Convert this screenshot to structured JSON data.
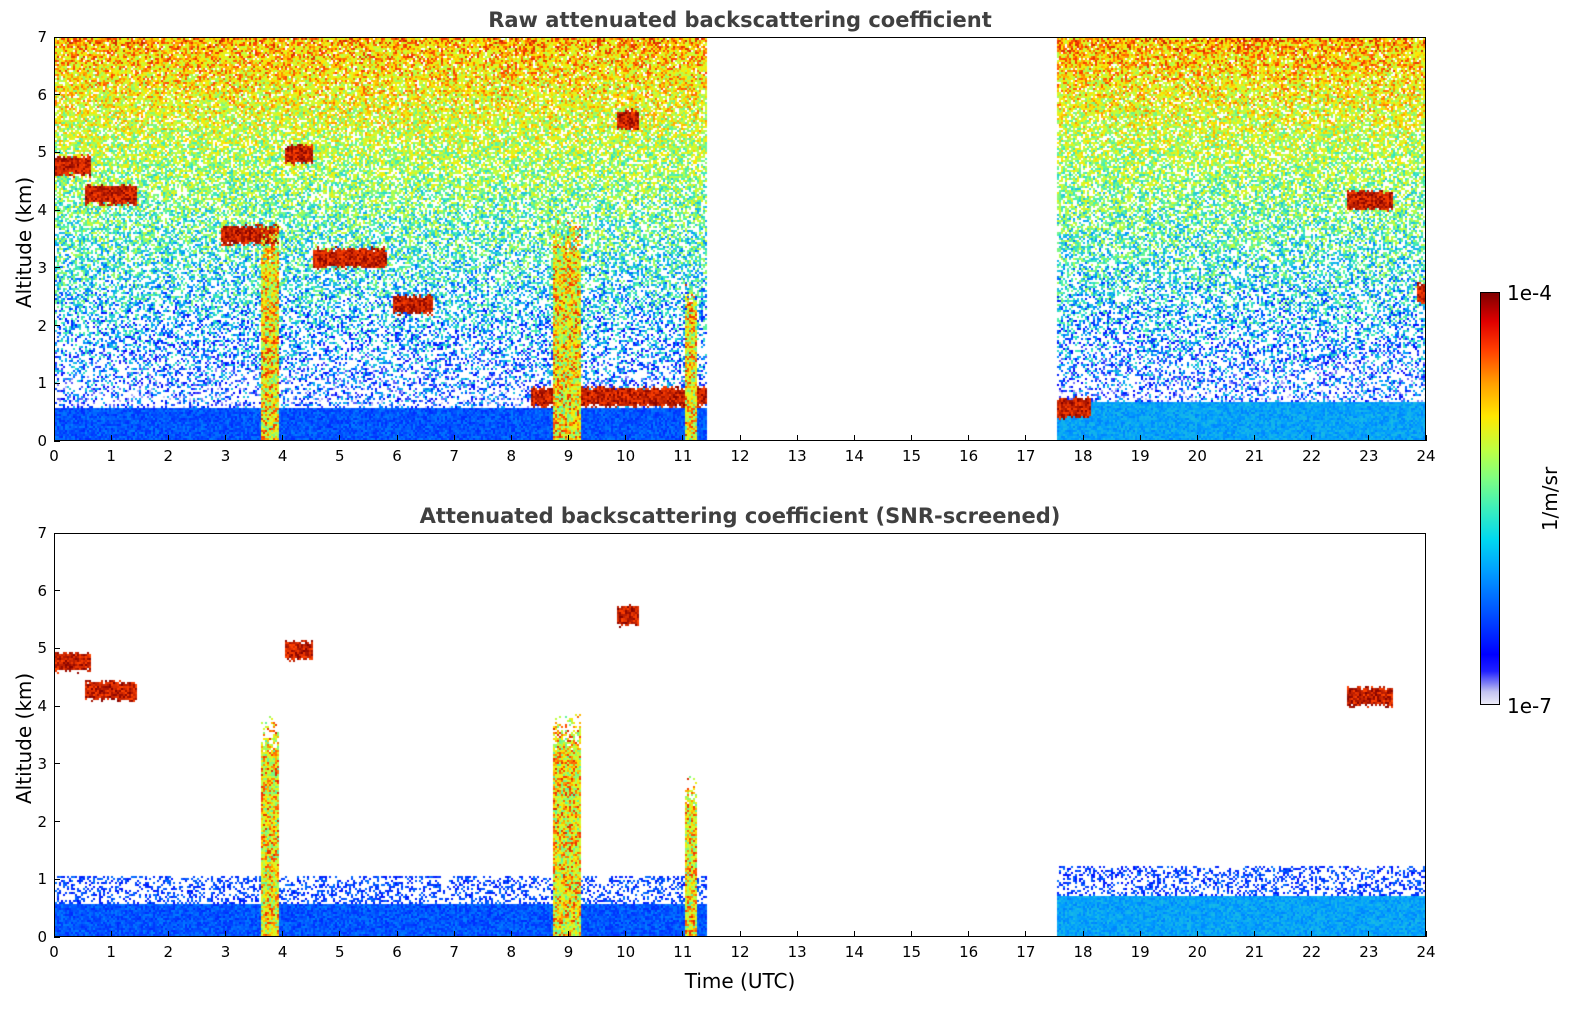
{
  "chart_data": [
    {
      "type": "heatmap",
      "title": "Raw attenuated backscattering coefficient",
      "xlabel": "",
      "ylabel": "Altitude (km)",
      "xlim": [
        0,
        24
      ],
      "ylim": [
        0,
        7
      ],
      "x_ticks": [
        "0",
        "1",
        "2",
        "3",
        "4",
        "5",
        "6",
        "7",
        "8",
        "9",
        "10",
        "11",
        "12",
        "13",
        "14",
        "15",
        "16",
        "17",
        "18",
        "19",
        "20",
        "21",
        "22",
        "23",
        "24"
      ],
      "y_ticks": [
        "0",
        "1",
        "2",
        "3",
        "4",
        "5",
        "6",
        "7"
      ],
      "data_gap_utc": [
        11.4,
        17.5
      ],
      "features": [
        {
          "kind": "boundary_layer",
          "t_start": 0,
          "t_end": 11.4,
          "alt_top_km": 0.6
        },
        {
          "kind": "boundary_layer",
          "t_start": 17.5,
          "t_end": 24,
          "alt_top_km": 0.7
        },
        {
          "kind": "cloud",
          "t_start": 0,
          "t_end": 0.6,
          "alt_km": 4.8
        },
        {
          "kind": "cloud",
          "t_start": 0.5,
          "t_end": 1.4,
          "alt_km": 4.3
        },
        {
          "kind": "cloud",
          "t_start": 2.9,
          "t_end": 3.9,
          "alt_km": 3.6
        },
        {
          "kind": "cloud",
          "t_start": 4.0,
          "t_end": 4.5,
          "alt_km": 5.0
        },
        {
          "kind": "cloud",
          "t_start": 4.5,
          "t_end": 5.8,
          "alt_km": 3.2
        },
        {
          "kind": "cloud",
          "t_start": 5.9,
          "t_end": 6.6,
          "alt_km": 2.4
        },
        {
          "kind": "cloud",
          "t_start": 9.8,
          "t_end": 10.2,
          "alt_km": 5.6
        },
        {
          "kind": "cloud",
          "t_start": 8.3,
          "t_end": 11.4,
          "alt_km": 0.8
        },
        {
          "kind": "cloud",
          "t_start": 17.5,
          "t_end": 18.1,
          "alt_km": 0.6
        },
        {
          "kind": "cloud",
          "t_start": 22.6,
          "t_end": 23.4,
          "alt_km": 4.2
        },
        {
          "kind": "cloud",
          "t_start": 23.8,
          "t_end": 24,
          "alt_km": 2.6
        },
        {
          "kind": "precipitation",
          "t_start": 3.6,
          "t_end": 3.9,
          "alt_top_km": 3.7
        },
        {
          "kind": "precipitation",
          "t_start": 8.7,
          "t_end": 9.2,
          "alt_top_km": 3.8
        },
        {
          "kind": "precipitation",
          "t_start": 11.0,
          "t_end": 11.2,
          "alt_top_km": 2.7
        }
      ]
    },
    {
      "type": "heatmap",
      "title": "Attenuated backscattering coefficient (SNR-screened)",
      "xlabel": "Time (UTC)",
      "ylabel": "Altitude (km)",
      "xlim": [
        0,
        24
      ],
      "ylim": [
        0,
        7
      ],
      "x_ticks": [
        "0",
        "1",
        "2",
        "3",
        "4",
        "5",
        "6",
        "7",
        "8",
        "9",
        "10",
        "11",
        "12",
        "13",
        "14",
        "15",
        "16",
        "17",
        "18",
        "19",
        "20",
        "21",
        "22",
        "23",
        "24"
      ],
      "y_ticks": [
        "0",
        "1",
        "2",
        "3",
        "4",
        "5",
        "6",
        "7"
      ],
      "data_gap_utc": [
        11.4,
        17.5
      ],
      "features": [
        {
          "kind": "boundary_layer",
          "t_start": 0,
          "t_end": 11.4,
          "alt_top_km": 0.6
        },
        {
          "kind": "boundary_layer",
          "t_start": 17.5,
          "t_end": 24,
          "alt_top_km": 0.75
        },
        {
          "kind": "cloud",
          "t_start": 0,
          "t_end": 0.6,
          "alt_km": 4.8
        },
        {
          "kind": "cloud",
          "t_start": 0.5,
          "t_end": 1.4,
          "alt_km": 4.3
        },
        {
          "kind": "cloud",
          "t_start": 4.0,
          "t_end": 4.5,
          "alt_km": 5.0
        },
        {
          "kind": "cloud",
          "t_start": 9.8,
          "t_end": 10.2,
          "alt_km": 5.6
        },
        {
          "kind": "cloud",
          "t_start": 22.6,
          "t_end": 23.4,
          "alt_km": 4.2
        },
        {
          "kind": "precipitation",
          "t_start": 3.6,
          "t_end": 3.9,
          "alt_top_km": 3.7
        },
        {
          "kind": "precipitation",
          "t_start": 8.7,
          "t_end": 9.2,
          "alt_top_km": 3.8
        },
        {
          "kind": "precipitation",
          "t_start": 11.0,
          "t_end": 11.2,
          "alt_top_km": 2.7
        }
      ]
    }
  ],
  "colorbar": {
    "max_label": "1e-4",
    "min_label": "1e-7",
    "unit": "1/m/sr",
    "colormap": [
      "#ecebf8",
      "#0000ff",
      "#009cff",
      "#40f0b8",
      "#c0ff40",
      "#ffe800",
      "#ff4000",
      "#800000"
    ]
  }
}
